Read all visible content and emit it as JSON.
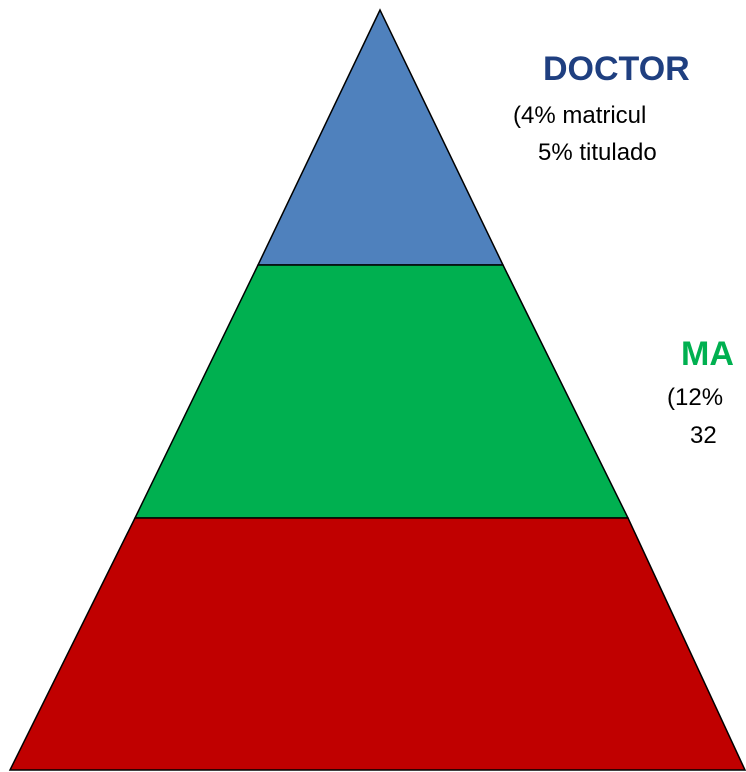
{
  "levels": [
    {
      "title": "DOCTOR",
      "lines": [
        "(4% matricul",
        "5% titulado"
      ]
    },
    {
      "title": "MA",
      "lines": [
        "(12%",
        "32"
      ]
    }
  ]
}
